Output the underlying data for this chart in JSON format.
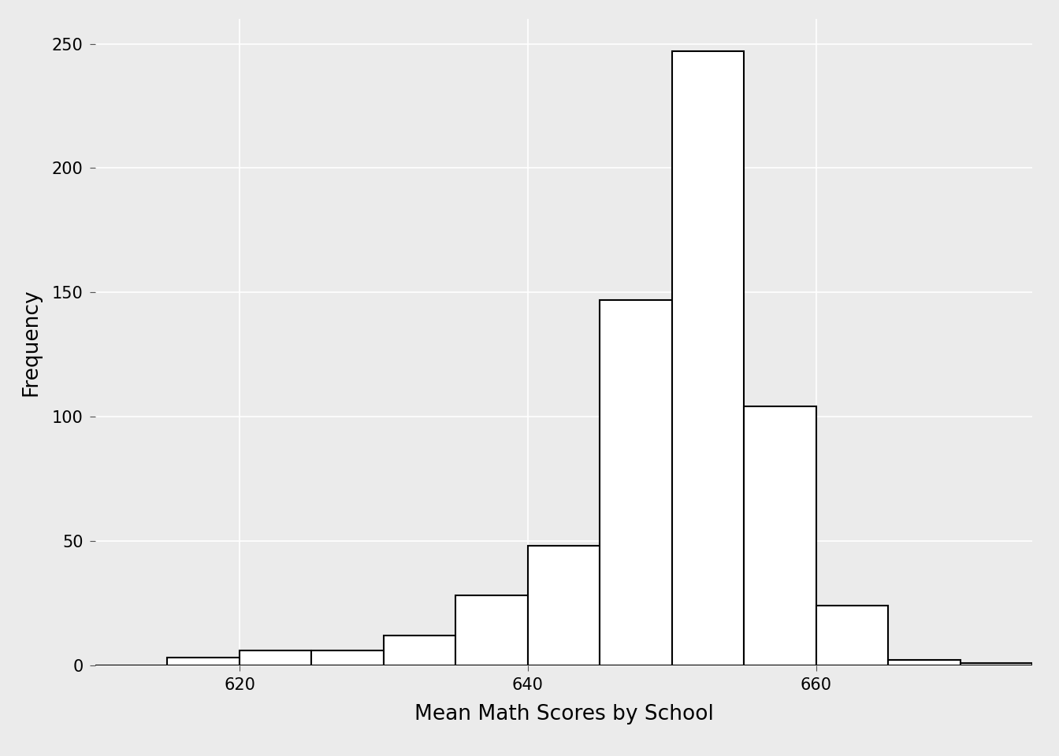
{
  "title": "",
  "xlabel": "Mean Math Scores by School",
  "ylabel": "Frequency",
  "background_color": "#EBEBEB",
  "panel_background_color": "#EBEBEB",
  "bar_color": "#FFFFFF",
  "bar_edge_color": "#000000",
  "bin_edges": [
    610,
    615,
    620,
    625,
    630,
    635,
    640,
    645,
    650,
    655,
    660,
    665,
    670,
    675
  ],
  "frequencies": [
    0,
    3,
    6,
    6,
    12,
    28,
    48,
    147,
    247,
    104,
    24,
    2,
    1
  ],
  "xticks": [
    620,
    640,
    660
  ],
  "yticks": [
    0,
    50,
    100,
    150,
    200,
    250
  ],
  "xlim": [
    610,
    675
  ],
  "ylim": [
    0,
    260
  ],
  "xlabel_fontsize": 19,
  "ylabel_fontsize": 19,
  "tick_fontsize": 15,
  "grid_color": "#FFFFFF",
  "grid_linewidth": 1.2,
  "bar_linewidth": 1.5,
  "bar_edge_linewidth": 1.5
}
